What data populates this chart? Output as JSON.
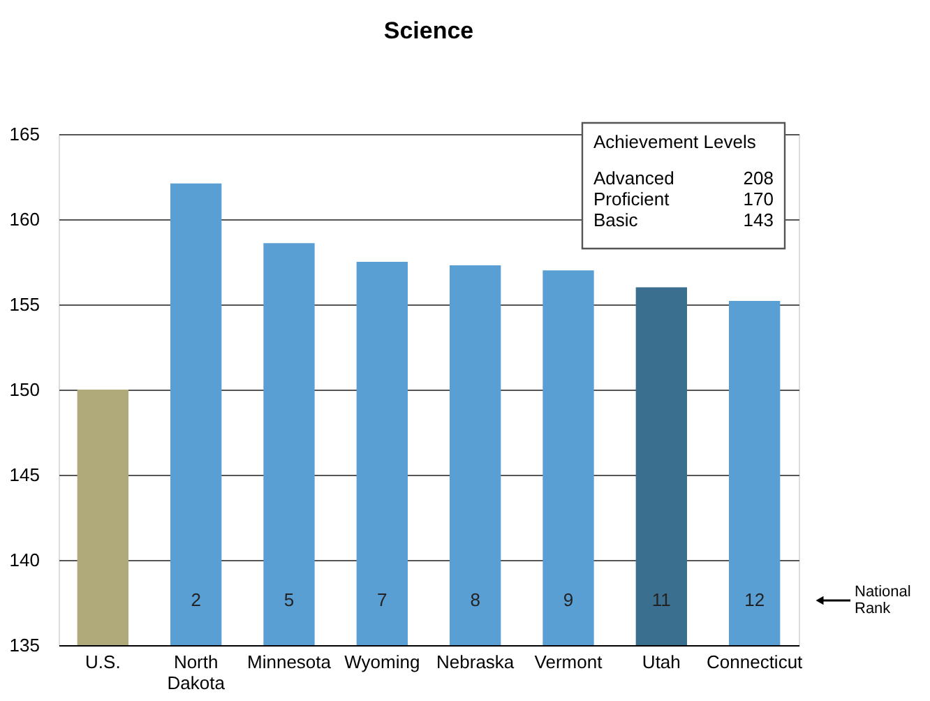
{
  "chart_data": {
    "type": "bar",
    "title": "Science",
    "categories": [
      "U.S.",
      "North Dakota",
      "Minnesota",
      "Wyoming",
      "Nebraska",
      "Vermont",
      "Utah",
      "Connecticut"
    ],
    "values": [
      150,
      162.1,
      158.6,
      157.5,
      157.3,
      157.0,
      156.0,
      155.2
    ],
    "colors": [
      "#b0a97a",
      "#5a9fd4",
      "#5a9fd4",
      "#5a9fd4",
      "#5a9fd4",
      "#5a9fd4",
      "#3a6f8f",
      "#5a9fd4"
    ],
    "ylim": [
      135,
      165
    ],
    "yticks": [
      135,
      140,
      145,
      150,
      155,
      160,
      165
    ],
    "grid": "y",
    "annotations": [
      "Achievement Levels",
      "Advanced",
      "208",
      "Proficient",
      "170",
      "Basic",
      "143",
      "National Rank",
      "2",
      "5",
      "7",
      "8",
      "9",
      "11",
      "12"
    ]
  }
}
